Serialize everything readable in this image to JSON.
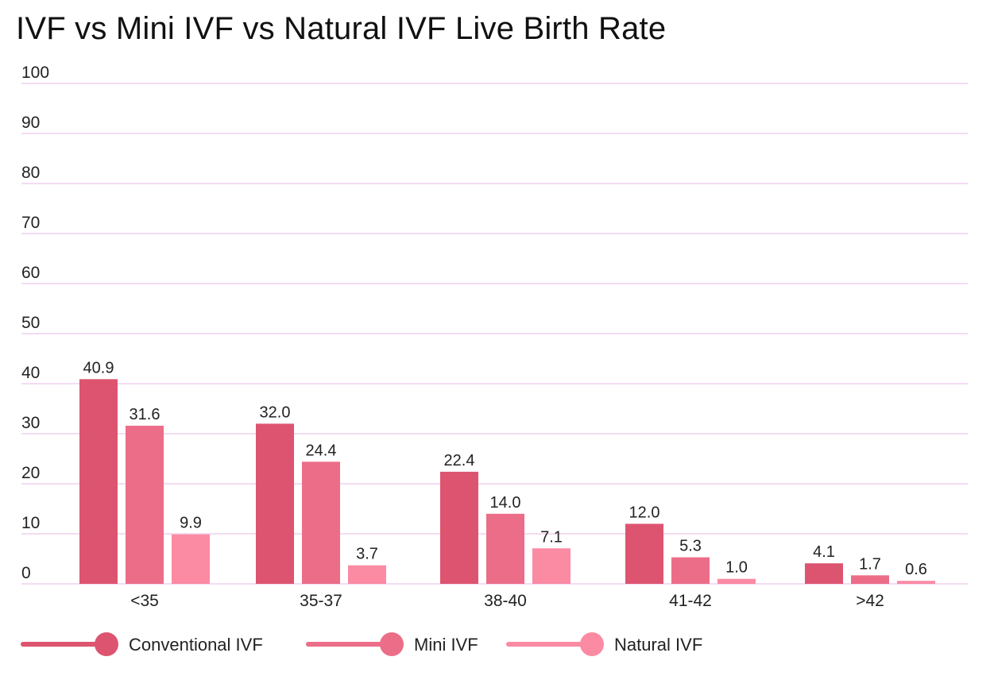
{
  "chart_data": {
    "type": "bar",
    "title": "IVF vs Mini IVF vs Natural IVF Live Birth Rate",
    "categories": [
      "<35",
      "35-37",
      "38-40",
      "41-42",
      ">42"
    ],
    "series": [
      {
        "name": "Conventional IVF",
        "color": "#dd5470",
        "values": [
          40.9,
          32.0,
          22.4,
          12.0,
          4.1
        ],
        "labels": [
          "40.9",
          "32.0",
          "22.4",
          "12.0",
          "4.1"
        ]
      },
      {
        "name": "Mini IVF",
        "color": "#ec6d88",
        "values": [
          31.6,
          24.4,
          14.0,
          5.3,
          1.7
        ],
        "labels": [
          "31.6",
          "24.4",
          "14.0",
          "5.3",
          "1.7"
        ]
      },
      {
        "name": "Natural IVF",
        "color": "#fb8aa3",
        "values": [
          9.9,
          3.7,
          7.1,
          1.0,
          0.6
        ],
        "labels": [
          "9.9",
          "3.7",
          "7.1",
          "1.0",
          "0.6"
        ]
      }
    ],
    "ylim": [
      0,
      100
    ],
    "yticks": [
      0,
      10,
      20,
      30,
      40,
      50,
      60,
      70,
      80,
      90,
      100
    ],
    "grid": true,
    "grid_color": "#f3dcf2",
    "legend": "bottom-left"
  }
}
